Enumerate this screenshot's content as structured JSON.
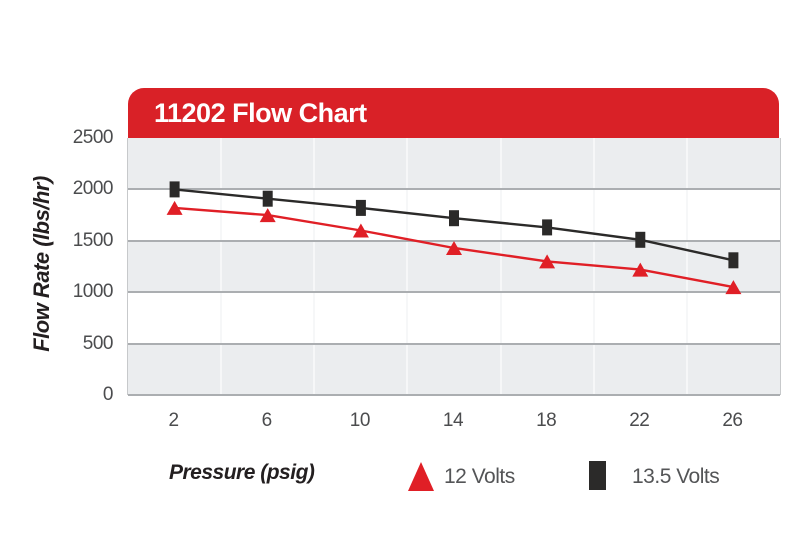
{
  "chart_data": {
    "type": "line",
    "title": "11202 Flow Chart",
    "xlabel": "Pressure (psig)",
    "ylabel": "Flow Rate (lbs/hr)",
    "categories": [
      "2",
      "6",
      "10",
      "14",
      "18",
      "22",
      "26"
    ],
    "series": [
      {
        "name": "12 Volts",
        "color": "#E01F26",
        "marker": "triangle",
        "values": [
          1820,
          1750,
          1600,
          1430,
          1300,
          1220,
          1050
        ]
      },
      {
        "name": "13.5 Volts",
        "color": "#2B2A29",
        "marker": "square",
        "values": [
          2000,
          1910,
          1820,
          1720,
          1630,
          1510,
          1310
        ]
      }
    ],
    "ylim": [
      0,
      2500
    ],
    "y_ticks": [
      0,
      500,
      1000,
      1500,
      2000,
      2500
    ],
    "grid": {
      "horizontal": true,
      "vertical_at_category_boundaries": true
    },
    "legend_position": "bottom"
  },
  "colors": {
    "header_bg": "#D92127",
    "header_text": "#FFFFFF",
    "band_gray": "#EBEDEF",
    "band_white": "#FFFFFF",
    "gridline": "#ABAEB1",
    "vertical_gridline": "#F6F7F8",
    "plot_border": "#C7C9CB",
    "tick_text": "#4B4C4E",
    "legend_text": "#545557",
    "axis_title_text": "#231F20"
  }
}
